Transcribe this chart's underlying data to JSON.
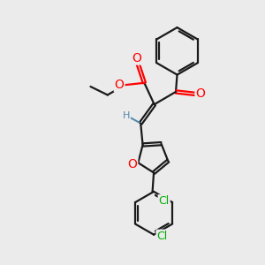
{
  "background_color": "#ebebeb",
  "line_color": "#1a1a1a",
  "oxygen_color": "#ff0000",
  "chlorine_color": "#00aa00",
  "hydrogen_color": "#5588aa",
  "line_width": 1.6,
  "dbo": 0.055,
  "xlim": [
    0,
    10
  ],
  "ylim": [
    0,
    10
  ]
}
